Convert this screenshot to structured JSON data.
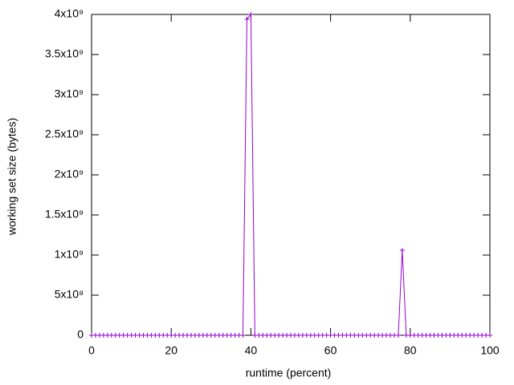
{
  "chart_data": {
    "type": "line",
    "xlabel": "runtime (percent)",
    "ylabel": "working set size (bytes)",
    "xlim": [
      0,
      100
    ],
    "xticks": [
      0,
      20,
      40,
      60,
      80,
      100
    ],
    "ylim": [
      0,
      4000000000
    ],
    "yticks": [
      0,
      {
        "value": 500000000,
        "label": "5x10⁸"
      },
      {
        "value": 1000000000,
        "label": "1x10⁹"
      },
      {
        "value": 1500000000,
        "label": "1.5x10⁹"
      },
      {
        "value": 2000000000,
        "label": "2x10⁹"
      },
      {
        "value": 2500000000,
        "label": "2.5x10⁹"
      },
      {
        "value": 3000000000,
        "label": "3x10⁹"
      },
      {
        "value": 3500000000,
        "label": "3.5x10⁹"
      },
      {
        "value": 4000000000,
        "label": "4x10⁹"
      }
    ],
    "x": [
      0,
      1,
      2,
      3,
      4,
      5,
      6,
      7,
      8,
      9,
      10,
      11,
      12,
      13,
      14,
      15,
      16,
      17,
      18,
      19,
      20,
      21,
      22,
      23,
      24,
      25,
      26,
      27,
      28,
      29,
      30,
      31,
      32,
      33,
      34,
      35,
      36,
      37,
      38,
      39,
      40,
      41,
      42,
      43,
      44,
      45,
      46,
      47,
      48,
      49,
      50,
      51,
      52,
      53,
      54,
      55,
      56,
      57,
      58,
      59,
      60,
      61,
      62,
      63,
      64,
      65,
      66,
      67,
      68,
      69,
      70,
      71,
      72,
      73,
      74,
      75,
      76,
      77,
      78,
      79,
      80,
      81,
      82,
      83,
      84,
      85,
      86,
      87,
      88,
      89,
      90,
      91,
      92,
      93,
      94,
      95,
      96,
      97,
      98,
      99,
      100
    ],
    "series": [
      {
        "color": "#9400d3",
        "values": [
          0,
          0,
          0,
          0,
          0,
          0,
          0,
          0,
          0,
          0,
          0,
          0,
          0,
          0,
          0,
          0,
          0,
          0,
          0,
          0,
          0,
          0,
          0,
          0,
          0,
          0,
          0,
          0,
          0,
          0,
          0,
          0,
          0,
          0,
          0,
          0,
          0,
          0,
          0,
          3940000000,
          4000000000,
          0,
          0,
          0,
          0,
          0,
          0,
          0,
          0,
          0,
          0,
          0,
          0,
          0,
          0,
          0,
          0,
          0,
          0,
          0,
          0,
          0,
          0,
          0,
          0,
          0,
          0,
          0,
          0,
          0,
          0,
          0,
          0,
          0,
          0,
          0,
          0,
          0,
          1060000000,
          0,
          0,
          0,
          0,
          0,
          0,
          0,
          0,
          0,
          0,
          0,
          0,
          0,
          0,
          0,
          0,
          0,
          0,
          0,
          0,
          0,
          0
        ]
      }
    ]
  }
}
